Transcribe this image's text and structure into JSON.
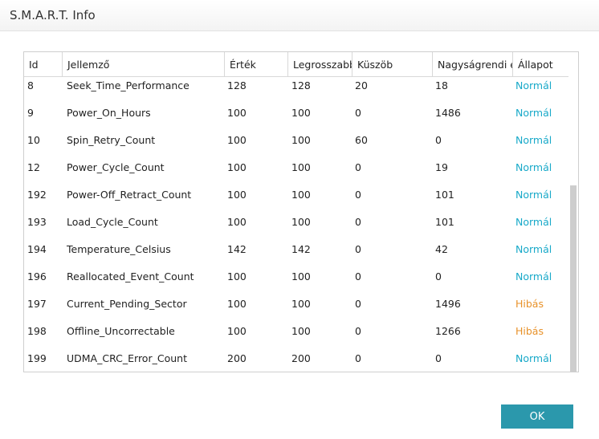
{
  "window": {
    "title": "S.M.A.R.T. Info"
  },
  "table": {
    "columns": [
      "Id",
      "Jellemző",
      "Érték",
      "Legrosszabb",
      "Küszöb",
      "Nagyságrendi é",
      "Állapot"
    ],
    "rows": [
      {
        "id": "8",
        "attr": "Seek_Time_Performance",
        "value": "128",
        "worst": "128",
        "threshold": "20",
        "raw": "18",
        "status": "Normál",
        "status_type": "ok"
      },
      {
        "id": "9",
        "attr": "Power_On_Hours",
        "value": "100",
        "worst": "100",
        "threshold": "0",
        "raw": "1486",
        "status": "Normál",
        "status_type": "ok"
      },
      {
        "id": "10",
        "attr": "Spin_Retry_Count",
        "value": "100",
        "worst": "100",
        "threshold": "60",
        "raw": "0",
        "status": "Normál",
        "status_type": "ok"
      },
      {
        "id": "12",
        "attr": "Power_Cycle_Count",
        "value": "100",
        "worst": "100",
        "threshold": "0",
        "raw": "19",
        "status": "Normál",
        "status_type": "ok"
      },
      {
        "id": "192",
        "attr": "Power-Off_Retract_Count",
        "value": "100",
        "worst": "100",
        "threshold": "0",
        "raw": "101",
        "status": "Normál",
        "status_type": "ok"
      },
      {
        "id": "193",
        "attr": "Load_Cycle_Count",
        "value": "100",
        "worst": "100",
        "threshold": "0",
        "raw": "101",
        "status": "Normál",
        "status_type": "ok"
      },
      {
        "id": "194",
        "attr": "Temperature_Celsius",
        "value": "142",
        "worst": "142",
        "threshold": "0",
        "raw": "42",
        "status": "Normál",
        "status_type": "ok"
      },
      {
        "id": "196",
        "attr": "Reallocated_Event_Count",
        "value": "100",
        "worst": "100",
        "threshold": "0",
        "raw": "0",
        "status": "Normál",
        "status_type": "ok"
      },
      {
        "id": "197",
        "attr": "Current_Pending_Sector",
        "value": "100",
        "worst": "100",
        "threshold": "0",
        "raw": "1496",
        "status": "Hibás",
        "status_type": "bad"
      },
      {
        "id": "198",
        "attr": "Offline_Uncorrectable",
        "value": "100",
        "worst": "100",
        "threshold": "0",
        "raw": "1266",
        "status": "Hibás",
        "status_type": "bad"
      },
      {
        "id": "199",
        "attr": "UDMA_CRC_Error_Count",
        "value": "200",
        "worst": "200",
        "threshold": "0",
        "raw": "0",
        "status": "Normál",
        "status_type": "ok"
      }
    ]
  },
  "buttons": {
    "ok_label": "OK"
  },
  "colors": {
    "accent": "#2b98ac",
    "status_ok": "#18a9c9",
    "status_bad": "#e8922a"
  }
}
